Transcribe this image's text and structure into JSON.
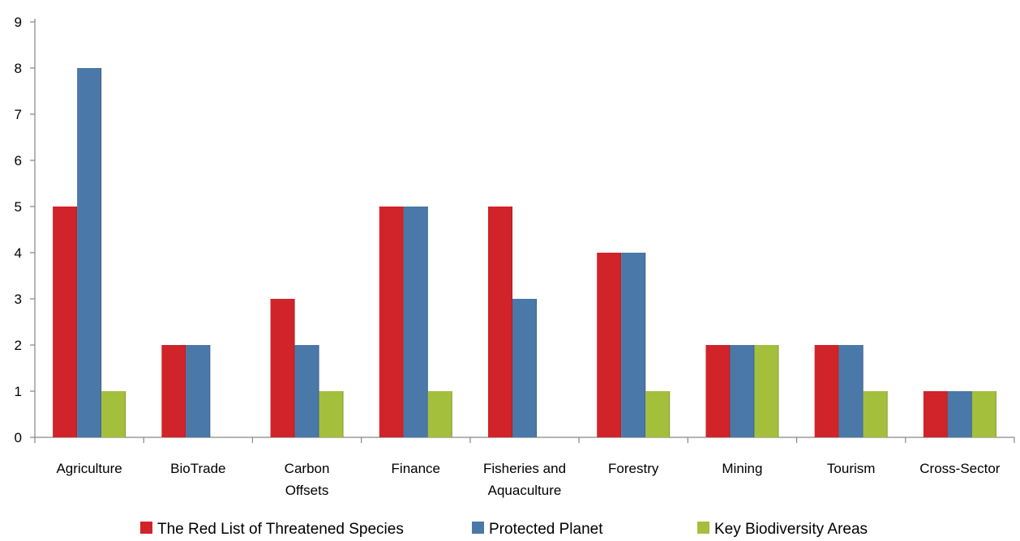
{
  "chart_data": {
    "type": "bar",
    "title": "",
    "xlabel": "",
    "ylabel": "",
    "ylim": [
      0,
      9
    ],
    "yticks": [
      "0",
      "1",
      "2",
      "3",
      "4",
      "5",
      "6",
      "7",
      "8",
      "9"
    ],
    "grid": false,
    "legend_position": "bottom",
    "categories": [
      [
        "Agriculture"
      ],
      [
        "BioTrade"
      ],
      [
        "Carbon",
        "Offsets"
      ],
      [
        "Finance"
      ],
      [
        "Fisheries and",
        "Aquaculture"
      ],
      [
        "Forestry"
      ],
      [
        "Mining"
      ],
      [
        "Tourism"
      ],
      [
        "Cross-Sector"
      ]
    ],
    "series": [
      {
        "name": "The Red List of Threatened Species",
        "color": "#d0242a",
        "values": [
          5,
          2,
          3,
          5,
          5,
          4,
          2,
          2,
          1
        ]
      },
      {
        "name": "Protected Planet",
        "color": "#4a78a8",
        "values": [
          8,
          2,
          2,
          5,
          3,
          4,
          2,
          2,
          1
        ]
      },
      {
        "name": "Key Biodiversity Areas",
        "color": "#a3bf3c",
        "values": [
          1,
          0,
          1,
          1,
          0,
          1,
          2,
          1,
          1
        ]
      }
    ]
  }
}
